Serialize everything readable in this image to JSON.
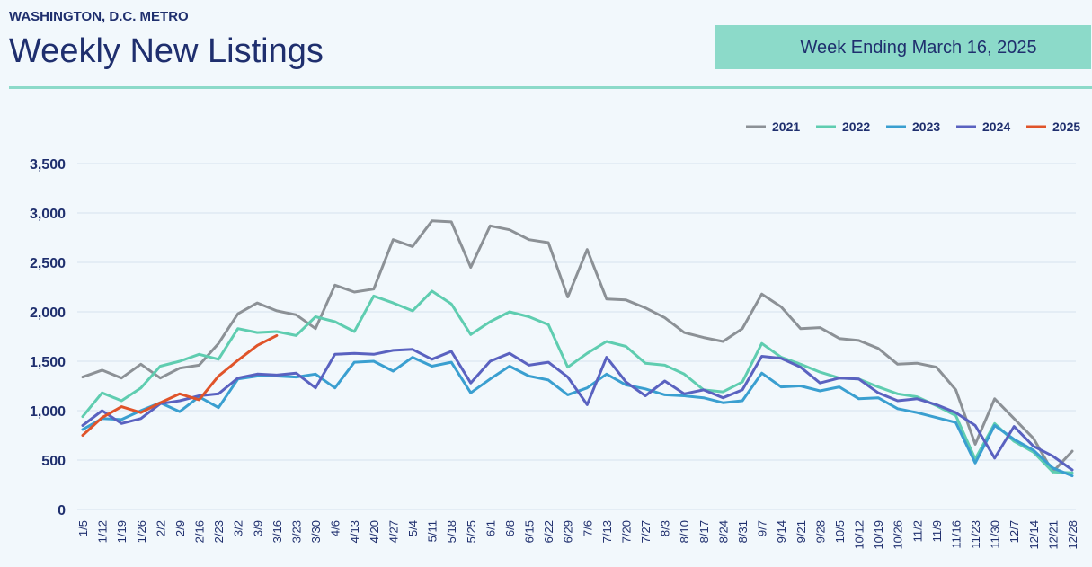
{
  "header": {
    "region": "WASHINGTON, D.C. METRO",
    "title": "Weekly New Listings",
    "week_ending": "Week Ending March 16, 2025"
  },
  "chart_data": {
    "type": "line",
    "categories": [
      "1/5",
      "1/12",
      "1/19",
      "1/26",
      "2/2",
      "2/9",
      "2/16",
      "2/23",
      "3/2",
      "3/9",
      "3/16",
      "3/23",
      "3/30",
      "4/6",
      "4/13",
      "4/20",
      "4/27",
      "5/4",
      "5/11",
      "5/18",
      "5/25",
      "6/1",
      "6/8",
      "6/15",
      "6/22",
      "6/29",
      "7/6",
      "7/13",
      "7/20",
      "7/27",
      "8/3",
      "8/10",
      "8/17",
      "8/24",
      "8/31",
      "9/7",
      "9/14",
      "9/21",
      "9/28",
      "10/5",
      "10/12",
      "10/19",
      "10/26",
      "11/2",
      "11/9",
      "11/16",
      "11/23",
      "11/30",
      "12/7",
      "12/14",
      "12/21",
      "12/28"
    ],
    "series": [
      {
        "name": "2021",
        "color": "#8c9196",
        "values": [
          1340,
          1410,
          1330,
          1470,
          1330,
          1430,
          1460,
          1680,
          1980,
          2090,
          2010,
          1970,
          1830,
          2270,
          2200,
          2230,
          2730,
          2660,
          2920,
          2910,
          2450,
          2870,
          2830,
          2730,
          2700,
          2150,
          2630,
          2130,
          2120,
          2040,
          1940,
          1790,
          1740,
          1700,
          1830,
          2180,
          2050,
          1830,
          1840,
          1730,
          1710,
          1630,
          1470,
          1480,
          1440,
          1210,
          660,
          1120,
          920,
          720,
          380,
          590
        ]
      },
      {
        "name": "2022",
        "color": "#5fcdb0",
        "values": [
          940,
          1180,
          1100,
          1230,
          1450,
          1500,
          1570,
          1520,
          1830,
          1790,
          1800,
          1760,
          1950,
          1900,
          1800,
          2160,
          2090,
          2010,
          2210,
          2080,
          1770,
          1900,
          2000,
          1950,
          1870,
          1440,
          1580,
          1700,
          1650,
          1480,
          1460,
          1370,
          1210,
          1190,
          1290,
          1680,
          1540,
          1470,
          1390,
          1330,
          1320,
          1240,
          1170,
          1140,
          1050,
          950,
          510,
          870,
          690,
          580,
          380,
          370
        ]
      },
      {
        "name": "2023",
        "color": "#3a9fd0",
        "values": [
          810,
          920,
          910,
          1000,
          1080,
          990,
          1140,
          1030,
          1320,
          1350,
          1350,
          1340,
          1370,
          1230,
          1490,
          1500,
          1400,
          1540,
          1450,
          1490,
          1180,
          1320,
          1450,
          1350,
          1310,
          1160,
          1230,
          1370,
          1260,
          1220,
          1160,
          1150,
          1130,
          1080,
          1100,
          1380,
          1240,
          1250,
          1200,
          1240,
          1120,
          1130,
          1020,
          980,
          930,
          880,
          470,
          850,
          710,
          600,
          420,
          340
        ]
      },
      {
        "name": "2024",
        "color": "#5a62c0",
        "values": [
          850,
          1000,
          870,
          920,
          1070,
          1100,
          1150,
          1170,
          1330,
          1370,
          1360,
          1380,
          1230,
          1570,
          1580,
          1570,
          1610,
          1620,
          1520,
          1600,
          1280,
          1500,
          1580,
          1460,
          1490,
          1340,
          1060,
          1540,
          1290,
          1150,
          1300,
          1170,
          1210,
          1130,
          1210,
          1550,
          1530,
          1440,
          1280,
          1330,
          1320,
          1180,
          1100,
          1120,
          1060,
          980,
          850,
          520,
          840,
          640,
          540,
          400
        ]
      },
      {
        "name": "2025",
        "color": "#e0542a",
        "values": [
          750,
          930,
          1040,
          980,
          1080,
          1170,
          1110,
          1350,
          1510,
          1660,
          1760,
          null,
          null,
          null,
          null,
          null,
          null,
          null,
          null,
          null,
          null,
          null,
          null,
          null,
          null,
          null,
          null,
          null,
          null,
          null,
          null,
          null,
          null,
          null,
          null,
          null,
          null,
          null,
          null,
          null,
          null,
          null,
          null,
          null,
          null,
          null,
          null,
          null,
          null,
          null,
          null,
          null
        ]
      }
    ],
    "ylim": [
      0,
      3500
    ],
    "yticks": [
      0,
      500,
      {
        "value": 1000,
        "label": "1,000"
      },
      {
        "value": 1500,
        "label": "1,500"
      },
      {
        "value": 2000,
        "label": "2,000"
      },
      {
        "value": 2500,
        "label": "2,500"
      },
      {
        "value": 3000,
        "label": "3,000"
      },
      {
        "value": 3500,
        "label": "3,500"
      }
    ],
    "grid": true,
    "legend": "top-right"
  }
}
